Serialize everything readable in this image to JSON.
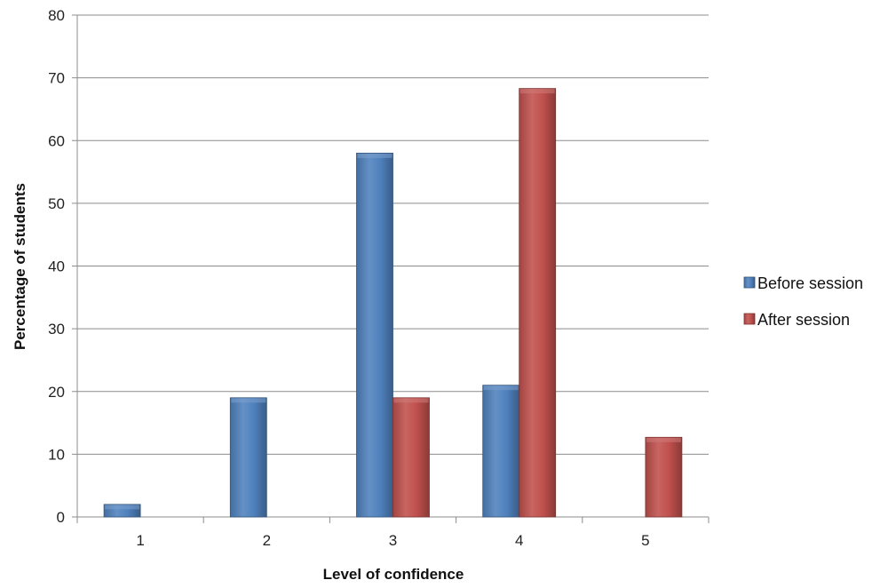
{
  "chart_data": {
    "type": "bar",
    "title": "",
    "xlabel": "Level of confidence",
    "ylabel": "Percentage of students",
    "categories": [
      "1",
      "2",
      "3",
      "4",
      "5"
    ],
    "ylim": [
      0,
      80
    ],
    "yticks": [
      0,
      10,
      20,
      30,
      40,
      50,
      60,
      70,
      80
    ],
    "grid": true,
    "legend_position": "right",
    "series": [
      {
        "name": "Before session",
        "color": "#4F81BD",
        "values": [
          2,
          19,
          58,
          21,
          0
        ]
      },
      {
        "name": "After session",
        "color": "#C0504D",
        "values": [
          0,
          0,
          19,
          68.3,
          12.7
        ]
      }
    ]
  }
}
